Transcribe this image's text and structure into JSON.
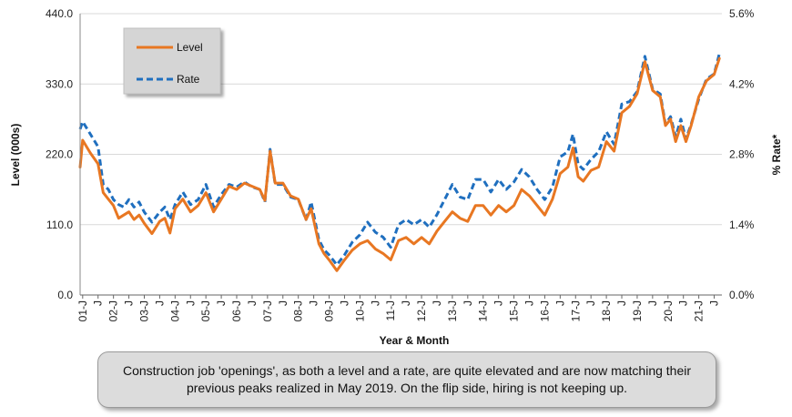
{
  "chart_data": {
    "type": "line",
    "title": "",
    "xlabel": "Year & Month",
    "ylabel_left": "Level (000s)",
    "ylabel_right": "% Rate*",
    "ylim_left": [
      0,
      440
    ],
    "ylim_right": [
      0,
      5.6
    ],
    "yticks_left": [
      "0.0",
      "110.0",
      "220.0",
      "330.0",
      "440.0"
    ],
    "yticks_right": [
      "0.0%",
      "1.4%",
      "2.8%",
      "4.2%",
      "5.6%"
    ],
    "x_range": [
      2000.917,
      2021.75
    ],
    "xticks": [
      {
        "year": 2001,
        "label": "01-J"
      },
      {
        "year": 2001.5,
        "label": "J"
      },
      {
        "year": 2002,
        "label": "02-J"
      },
      {
        "year": 2002.5,
        "label": "J"
      },
      {
        "year": 2003,
        "label": "03-J"
      },
      {
        "year": 2003.5,
        "label": "J"
      },
      {
        "year": 2004,
        "label": "04-J"
      },
      {
        "year": 2004.5,
        "label": "J"
      },
      {
        "year": 2005,
        "label": "05-J"
      },
      {
        "year": 2005.5,
        "label": "J"
      },
      {
        "year": 2006,
        "label": "06-J"
      },
      {
        "year": 2006.5,
        "label": "J"
      },
      {
        "year": 2007,
        "label": "07-J"
      },
      {
        "year": 2007.5,
        "label": "J"
      },
      {
        "year": 2008,
        "label": "08-J"
      },
      {
        "year": 2008.5,
        "label": "J"
      },
      {
        "year": 2009,
        "label": "09-J"
      },
      {
        "year": 2009.5,
        "label": "J"
      },
      {
        "year": 2010,
        "label": "10-J"
      },
      {
        "year": 2010.5,
        "label": "J"
      },
      {
        "year": 2011,
        "label": "11-J"
      },
      {
        "year": 2011.5,
        "label": "J"
      },
      {
        "year": 2012,
        "label": "12-J"
      },
      {
        "year": 2012.5,
        "label": "J"
      },
      {
        "year": 2013,
        "label": "13-J"
      },
      {
        "year": 2013.5,
        "label": "J"
      },
      {
        "year": 2014,
        "label": "14-J"
      },
      {
        "year": 2014.5,
        "label": "J"
      },
      {
        "year": 2015,
        "label": "15-J"
      },
      {
        "year": 2015.5,
        "label": "J"
      },
      {
        "year": 2016,
        "label": "16-J"
      },
      {
        "year": 2016.5,
        "label": "J"
      },
      {
        "year": 2017,
        "label": "17-J"
      },
      {
        "year": 2017.5,
        "label": "J"
      },
      {
        "year": 2018,
        "label": "18-J"
      },
      {
        "year": 2018.5,
        "label": "J"
      },
      {
        "year": 2019,
        "label": "19-J"
      },
      {
        "year": 2019.5,
        "label": "J"
      },
      {
        "year": 2020,
        "label": "20-J"
      },
      {
        "year": 2020.5,
        "label": "J"
      },
      {
        "year": 2021,
        "label": "21-J"
      },
      {
        "year": 2021.5,
        "label": "J"
      }
    ],
    "legend": {
      "placement": "top-left",
      "entries": [
        "Level",
        "Rate"
      ]
    },
    "grid": {
      "horizontal": true,
      "vertical": false
    },
    "series": [
      {
        "name": "Level",
        "axis": "left",
        "color": "#E87722",
        "style": "solid",
        "points": [
          [
            2000.917,
            200
          ],
          [
            2001.0,
            242
          ],
          [
            2001.25,
            222
          ],
          [
            2001.5,
            205
          ],
          [
            2001.667,
            160
          ],
          [
            2001.833,
            150
          ],
          [
            2002.0,
            140
          ],
          [
            2002.167,
            120
          ],
          [
            2002.333,
            125
          ],
          [
            2002.5,
            130
          ],
          [
            2002.667,
            118
          ],
          [
            2002.833,
            125
          ],
          [
            2003.0,
            112
          ],
          [
            2003.25,
            96
          ],
          [
            2003.5,
            115
          ],
          [
            2003.667,
            120
          ],
          [
            2003.833,
            97
          ],
          [
            2004.0,
            135
          ],
          [
            2004.25,
            150
          ],
          [
            2004.5,
            130
          ],
          [
            2004.75,
            140
          ],
          [
            2005.0,
            160
          ],
          [
            2005.25,
            130
          ],
          [
            2005.5,
            150
          ],
          [
            2005.75,
            170
          ],
          [
            2006.0,
            165
          ],
          [
            2006.25,
            175
          ],
          [
            2006.5,
            170
          ],
          [
            2006.75,
            165
          ],
          [
            2006.917,
            148
          ],
          [
            2007.083,
            225
          ],
          [
            2007.25,
            175
          ],
          [
            2007.5,
            175
          ],
          [
            2007.75,
            155
          ],
          [
            2008.0,
            150
          ],
          [
            2008.25,
            118
          ],
          [
            2008.417,
            135
          ],
          [
            2008.667,
            80
          ],
          [
            2008.833,
            65
          ],
          [
            2009.0,
            55
          ],
          [
            2009.25,
            38
          ],
          [
            2009.5,
            55
          ],
          [
            2009.75,
            70
          ],
          [
            2010.0,
            80
          ],
          [
            2010.25,
            85
          ],
          [
            2010.5,
            72
          ],
          [
            2010.75,
            65
          ],
          [
            2011.0,
            55
          ],
          [
            2011.25,
            85
          ],
          [
            2011.5,
            90
          ],
          [
            2011.75,
            80
          ],
          [
            2012.0,
            90
          ],
          [
            2012.25,
            80
          ],
          [
            2012.5,
            100
          ],
          [
            2012.75,
            115
          ],
          [
            2013.0,
            130
          ],
          [
            2013.25,
            120
          ],
          [
            2013.5,
            115
          ],
          [
            2013.75,
            140
          ],
          [
            2014.0,
            140
          ],
          [
            2014.25,
            125
          ],
          [
            2014.5,
            140
          ],
          [
            2014.75,
            130
          ],
          [
            2015.0,
            140
          ],
          [
            2015.25,
            165
          ],
          [
            2015.5,
            155
          ],
          [
            2015.75,
            140
          ],
          [
            2016.0,
            125
          ],
          [
            2016.25,
            150
          ],
          [
            2016.5,
            190
          ],
          [
            2016.75,
            200
          ],
          [
            2016.917,
            230
          ],
          [
            2017.083,
            185
          ],
          [
            2017.25,
            178
          ],
          [
            2017.5,
            195
          ],
          [
            2017.75,
            200
          ],
          [
            2018.0,
            240
          ],
          [
            2018.25,
            225
          ],
          [
            2018.5,
            285
          ],
          [
            2018.75,
            295
          ],
          [
            2019.0,
            315
          ],
          [
            2019.25,
            365
          ],
          [
            2019.5,
            320
          ],
          [
            2019.75,
            310
          ],
          [
            2019.917,
            265
          ],
          [
            2020.083,
            275
          ],
          [
            2020.25,
            240
          ],
          [
            2020.417,
            265
          ],
          [
            2020.583,
            240
          ],
          [
            2020.75,
            265
          ],
          [
            2021.0,
            310
          ],
          [
            2021.25,
            335
          ],
          [
            2021.5,
            345
          ],
          [
            2021.667,
            370
          ]
        ]
      },
      {
        "name": "Rate",
        "axis": "right",
        "color": "#1F6FBF",
        "style": "dashed",
        "points": [
          [
            2000.917,
            3.3
          ],
          [
            2001.0,
            3.45
          ],
          [
            2001.25,
            3.2
          ],
          [
            2001.5,
            2.95
          ],
          [
            2001.667,
            2.2
          ],
          [
            2001.833,
            2.1
          ],
          [
            2002.0,
            1.9
          ],
          [
            2002.167,
            1.8
          ],
          [
            2002.333,
            1.75
          ],
          [
            2002.5,
            1.9
          ],
          [
            2002.667,
            1.75
          ],
          [
            2002.833,
            1.85
          ],
          [
            2003.0,
            1.65
          ],
          [
            2003.25,
            1.45
          ],
          [
            2003.5,
            1.65
          ],
          [
            2003.667,
            1.75
          ],
          [
            2003.833,
            1.5
          ],
          [
            2004.0,
            1.8
          ],
          [
            2004.25,
            2.05
          ],
          [
            2004.5,
            1.8
          ],
          [
            2004.75,
            1.9
          ],
          [
            2005.0,
            2.2
          ],
          [
            2005.25,
            1.75
          ],
          [
            2005.5,
            2.0
          ],
          [
            2005.75,
            2.2
          ],
          [
            2006.0,
            2.15
          ],
          [
            2006.25,
            2.25
          ],
          [
            2006.5,
            2.15
          ],
          [
            2006.75,
            2.1
          ],
          [
            2006.917,
            1.85
          ],
          [
            2007.083,
            2.9
          ],
          [
            2007.25,
            2.2
          ],
          [
            2007.5,
            2.2
          ],
          [
            2007.75,
            1.95
          ],
          [
            2008.0,
            1.9
          ],
          [
            2008.25,
            1.5
          ],
          [
            2008.417,
            1.85
          ],
          [
            2008.667,
            1.1
          ],
          [
            2008.833,
            0.9
          ],
          [
            2009.0,
            0.8
          ],
          [
            2009.25,
            0.6
          ],
          [
            2009.5,
            0.8
          ],
          [
            2009.75,
            1.05
          ],
          [
            2010.0,
            1.2
          ],
          [
            2010.25,
            1.45
          ],
          [
            2010.5,
            1.25
          ],
          [
            2010.75,
            1.15
          ],
          [
            2011.0,
            0.95
          ],
          [
            2011.25,
            1.4
          ],
          [
            2011.5,
            1.5
          ],
          [
            2011.75,
            1.4
          ],
          [
            2012.0,
            1.5
          ],
          [
            2012.25,
            1.35
          ],
          [
            2012.5,
            1.6
          ],
          [
            2012.75,
            1.9
          ],
          [
            2013.0,
            2.2
          ],
          [
            2013.25,
            1.95
          ],
          [
            2013.5,
            1.9
          ],
          [
            2013.75,
            2.3
          ],
          [
            2014.0,
            2.3
          ],
          [
            2014.25,
            2.05
          ],
          [
            2014.5,
            2.3
          ],
          [
            2014.75,
            2.1
          ],
          [
            2015.0,
            2.25
          ],
          [
            2015.25,
            2.5
          ],
          [
            2015.5,
            2.35
          ],
          [
            2015.75,
            2.1
          ],
          [
            2016.0,
            1.9
          ],
          [
            2016.25,
            2.15
          ],
          [
            2016.5,
            2.75
          ],
          [
            2016.75,
            2.85
          ],
          [
            2016.917,
            3.2
          ],
          [
            2017.083,
            2.6
          ],
          [
            2017.25,
            2.5
          ],
          [
            2017.5,
            2.7
          ],
          [
            2017.75,
            2.85
          ],
          [
            2018.0,
            3.25
          ],
          [
            2018.25,
            3.0
          ],
          [
            2018.5,
            3.8
          ],
          [
            2018.75,
            3.85
          ],
          [
            2019.0,
            4.05
          ],
          [
            2019.25,
            4.75
          ],
          [
            2019.5,
            4.1
          ],
          [
            2019.75,
            4.0
          ],
          [
            2019.917,
            3.4
          ],
          [
            2020.083,
            3.55
          ],
          [
            2020.25,
            3.15
          ],
          [
            2020.417,
            3.5
          ],
          [
            2020.583,
            3.1
          ],
          [
            2020.75,
            3.4
          ],
          [
            2021.0,
            3.9
          ],
          [
            2021.25,
            4.3
          ],
          [
            2021.5,
            4.4
          ],
          [
            2021.667,
            4.8
          ]
        ]
      }
    ]
  },
  "caption": {
    "text": "Construction job 'openings', as both a level and a rate, are quite elevated and are now matching their previous peaks realized in May 2019. On the flip side, hiring is not keeping up."
  }
}
